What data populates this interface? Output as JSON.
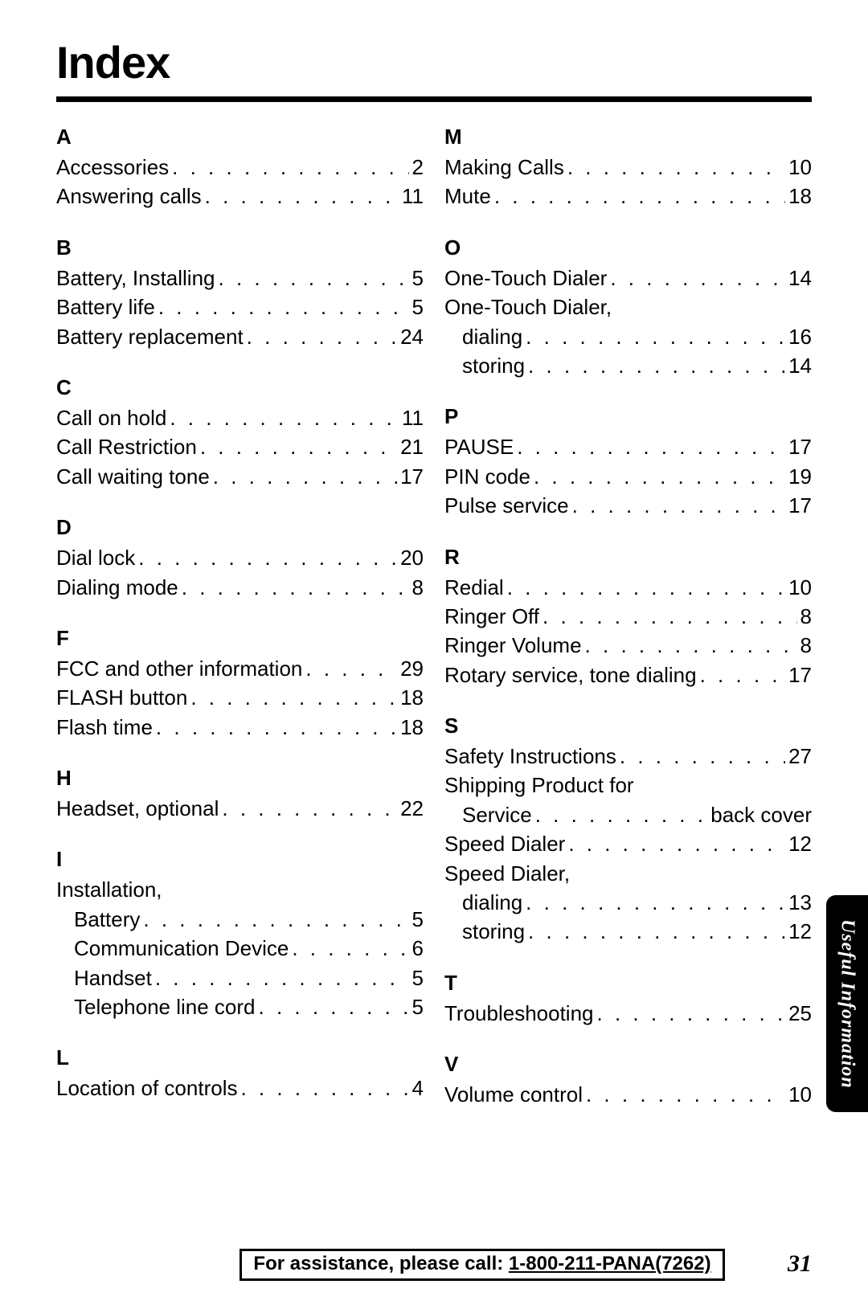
{
  "title": "Index",
  "dot_leader": ". . . . . . . . . . . . . . . . . . . . . . . . . . . . . . . . . . . . . . . . . .",
  "side_tab": "Useful Information",
  "footer": {
    "prefix": "For assistance, please call: ",
    "phone": "1-800-211-PANA(7262)"
  },
  "page_number": "31",
  "left_sections": [
    {
      "letter": "A",
      "entries": [
        {
          "term": "Accessories",
          "page": "2"
        },
        {
          "term": "Answering calls",
          "page": "11"
        }
      ]
    },
    {
      "letter": "B",
      "entries": [
        {
          "term": "Battery, Installing",
          "page": "5"
        },
        {
          "term": "Battery life",
          "page": "5"
        },
        {
          "term": "Battery replacement",
          "page": "24"
        }
      ]
    },
    {
      "letter": "C",
      "entries": [
        {
          "term": "Call on hold",
          "page": "11"
        },
        {
          "term": "Call Restriction",
          "page": "21"
        },
        {
          "term": "Call waiting tone",
          "page": "17"
        }
      ]
    },
    {
      "letter": "D",
      "entries": [
        {
          "term": "Dial lock",
          "page": "20"
        },
        {
          "term": "Dialing mode",
          "page": "8"
        }
      ]
    },
    {
      "letter": "F",
      "entries": [
        {
          "term": "FCC and other information",
          "page": "29"
        },
        {
          "term": "FLASH button",
          "page": "18"
        },
        {
          "term": "Flash time",
          "page": "18"
        }
      ]
    },
    {
      "letter": "H",
      "entries": [
        {
          "term": "Headset, optional",
          "page": "22"
        }
      ]
    },
    {
      "letter": "I",
      "entries": [
        {
          "term": "Installation,",
          "page": "",
          "continuation": true
        },
        {
          "term": "Battery",
          "page": "5",
          "sub": true
        },
        {
          "term": "Communication Device",
          "page": "6",
          "sub": true
        },
        {
          "term": "Handset",
          "page": "5",
          "sub": true
        },
        {
          "term": "Telephone line cord",
          "page": "5",
          "sub": true
        }
      ]
    },
    {
      "letter": "L",
      "entries": [
        {
          "term": "Location of controls",
          "page": "4"
        }
      ]
    }
  ],
  "right_sections": [
    {
      "letter": "M",
      "entries": [
        {
          "term": "Making Calls",
          "page": "10"
        },
        {
          "term": "Mute",
          "page": "18"
        }
      ]
    },
    {
      "letter": "O",
      "entries": [
        {
          "term": "One-Touch Dialer",
          "page": "14"
        },
        {
          "term": "One-Touch Dialer,",
          "page": "",
          "continuation": true
        },
        {
          "term": "dialing",
          "page": "16",
          "sub": true
        },
        {
          "term": "storing",
          "page": "14",
          "sub": true
        }
      ]
    },
    {
      "letter": "P",
      "entries": [
        {
          "term": "PAUSE",
          "page": "17"
        },
        {
          "term": "PIN code",
          "page": "19"
        },
        {
          "term": "Pulse service",
          "page": "17"
        }
      ]
    },
    {
      "letter": "R",
      "entries": [
        {
          "term": "Redial",
          "page": "10"
        },
        {
          "term": "Ringer Off",
          "page": "8"
        },
        {
          "term": "Ringer Volume",
          "page": "8"
        },
        {
          "term": "Rotary service, tone dialing",
          "page": "17"
        }
      ]
    },
    {
      "letter": "S",
      "entries": [
        {
          "term": "Safety Instructions",
          "page": "27"
        },
        {
          "term": "Shipping Product for",
          "page": "",
          "continuation": true
        },
        {
          "term": "Service",
          "page": "back cover",
          "sub": true
        },
        {
          "term": "Speed Dialer",
          "page": "12"
        },
        {
          "term": "Speed Dialer,",
          "page": "",
          "continuation": true
        },
        {
          "term": "dialing",
          "page": "13",
          "sub": true
        },
        {
          "term": "storing",
          "page": "12",
          "sub": true
        }
      ]
    },
    {
      "letter": "T",
      "entries": [
        {
          "term": "Troubleshooting",
          "page": "25"
        }
      ]
    },
    {
      "letter": "V",
      "entries": [
        {
          "term": "Volume control",
          "page": "10"
        }
      ]
    }
  ]
}
